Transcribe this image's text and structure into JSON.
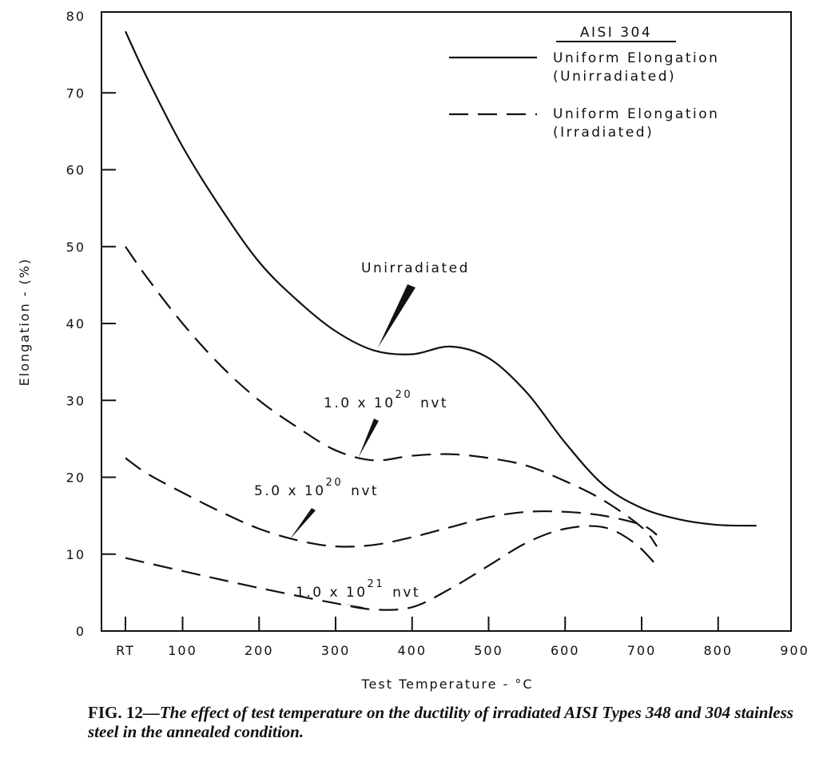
{
  "chart_data": {
    "type": "line",
    "title": "",
    "xlabel": "Test Temperature - °C",
    "ylabel": "Elongation - (%)",
    "xlim": [
      0,
      900
    ],
    "ylim": [
      0,
      80
    ],
    "x_ticks": [
      "RT",
      "100",
      "200",
      "300",
      "400",
      "500",
      "600",
      "700",
      "800",
      "900"
    ],
    "y_ticks": [
      "0",
      "10",
      "20",
      "30",
      "40",
      "50",
      "60",
      "70",
      "80"
    ],
    "grid": false,
    "legend": {
      "title": "AISI 304",
      "placement": "top-right",
      "entries": [
        {
          "line1": "Uniform Elongation",
          "line2": "(Unirradiated)",
          "style": "solid"
        },
        {
          "line1": "Uniform Elongation",
          "line2": "(Irradiated)",
          "style": "dashed"
        }
      ]
    },
    "series": [
      {
        "name": "Unirradiated",
        "style": "solid",
        "x": [
          20,
          50,
          100,
          150,
          200,
          250,
          300,
          350,
          400,
          450,
          500,
          550,
          600,
          650,
          700,
          750,
          800,
          850
        ],
        "y": [
          78,
          72,
          63,
          55,
          48,
          43,
          39,
          36.5,
          36,
          37,
          35.5,
          31,
          24.5,
          19,
          16,
          14.5,
          13.8,
          13.7
        ]
      },
      {
        "name": "1.0 x 10^20 nvt",
        "style": "dashed",
        "x": [
          20,
          50,
          100,
          150,
          200,
          250,
          300,
          350,
          400,
          450,
          500,
          550,
          600,
          650,
          700,
          720
        ],
        "y": [
          50,
          46,
          40,
          34.5,
          30,
          26.5,
          23.5,
          22.2,
          22.8,
          23,
          22.5,
          21.5,
          19.5,
          17,
          13.5,
          11
        ]
      },
      {
        "name": "5.0 x 10^20 nvt",
        "style": "dashed",
        "x": [
          20,
          50,
          100,
          150,
          200,
          250,
          300,
          350,
          400,
          450,
          500,
          550,
          600,
          650,
          700,
          720
        ],
        "y": [
          22.5,
          20.5,
          18,
          15.5,
          13.3,
          11.8,
          11,
          11.2,
          12.2,
          13.5,
          14.8,
          15.5,
          15.5,
          15,
          13.8,
          12.5
        ]
      },
      {
        "name": "1.0 x 10^21 nvt",
        "style": "dashed",
        "x": [
          20,
          100,
          200,
          300,
          350,
          400,
          450,
          500,
          550,
          600,
          650,
          690,
          720
        ],
        "y": [
          9.5,
          7.8,
          5.6,
          3.6,
          2.8,
          3.1,
          5.5,
          8.5,
          11.5,
          13.3,
          13.5,
          11.5,
          8.5
        ]
      }
    ],
    "annotations": [
      {
        "base": "Unirradiated",
        "exp": "",
        "unit": ""
      },
      {
        "base": "1.0 x 10",
        "exp": "20",
        "unit": "nvt"
      },
      {
        "base": "5.0 x 10",
        "exp": "20",
        "unit": "nvt"
      },
      {
        "base": "1.0 x 10",
        "exp": "21",
        "unit": "nvt"
      }
    ]
  },
  "caption": {
    "fig_label": "FIG. 12",
    "text": "—The effect of test temperature on the ductility of irradiated AISI Types 348 and 304 stainless steel in the annealed condition."
  }
}
